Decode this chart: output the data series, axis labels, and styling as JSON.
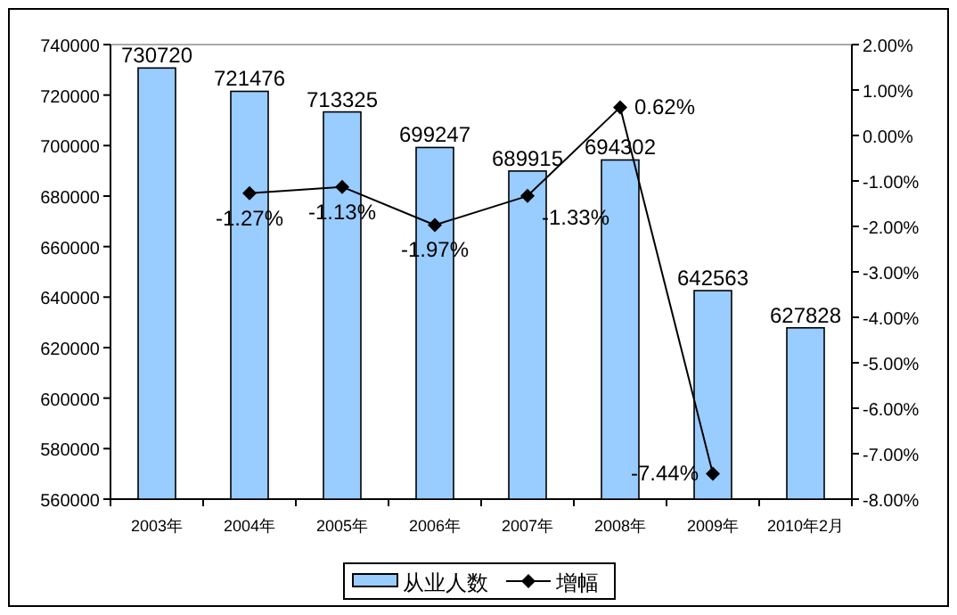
{
  "chart_data": {
    "type": "bar",
    "categories": [
      "2003年",
      "2004年",
      "2005年",
      "2006年",
      "2007年",
      "2008年",
      "2009年",
      "2010年2月"
    ],
    "series": [
      {
        "name": "从业人数",
        "color": "#99ccff",
        "values": [
          730720,
          721476,
          713325,
          699247,
          689915,
          694302,
          642563,
          627828
        ],
        "value_labels": [
          "730720",
          "721476",
          "713325",
          "699247",
          "689915",
          "694302",
          "642563",
          "627828"
        ]
      },
      {
        "name": "增幅",
        "type": "line",
        "axis": "y2",
        "color": "#000000",
        "marker": "diamond",
        "values": [
          null,
          -1.27,
          -1.13,
          -1.97,
          -1.33,
          0.62,
          -7.44,
          null
        ],
        "value_labels": [
          null,
          "-1.27%",
          "-1.13%",
          "-1.97%",
          "-1.33%",
          "0.62%",
          "-7.44%",
          null
        ]
      }
    ],
    "ylim": [
      560000,
      740000
    ],
    "yticks": [
      560000,
      580000,
      600000,
      620000,
      640000,
      660000,
      680000,
      700000,
      720000,
      740000
    ],
    "y2lim": [
      -8,
      2
    ],
    "y2ticks": [
      {
        "value": -8,
        "label": "-8.00%"
      },
      {
        "value": -7,
        "label": "-7.00%"
      },
      {
        "value": -6,
        "label": "-6.00%"
      },
      {
        "value": -5,
        "label": "-5.00%"
      },
      {
        "value": -4,
        "label": "-4.00%"
      },
      {
        "value": -3,
        "label": "-3.00%"
      },
      {
        "value": -2,
        "label": "-2.00%"
      },
      {
        "value": -1,
        "label": "-1.00%"
      },
      {
        "value": 0,
        "label": "0.00%"
      },
      {
        "value": 1,
        "label": "1.00%"
      },
      {
        "value": 2,
        "label": "2.00%"
      }
    ],
    "grid": false,
    "legend": "bottom"
  }
}
